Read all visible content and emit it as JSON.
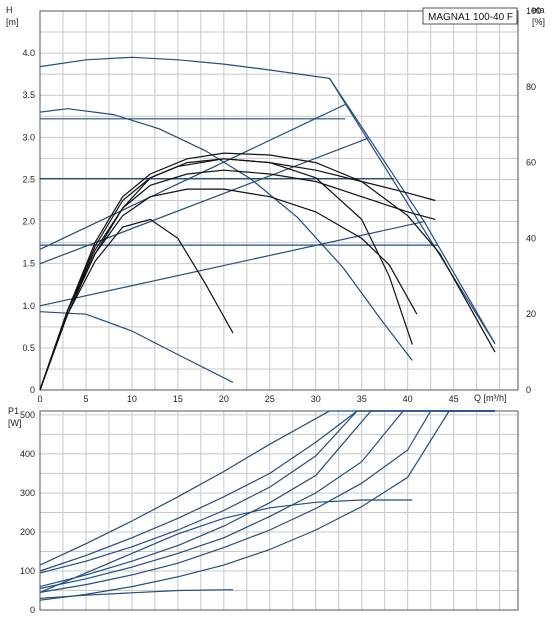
{
  "chart_data": [
    {
      "type": "line",
      "title": "MAGNA1 100-40 F",
      "xlabel": "Q [m³/h]",
      "ylabel": "H",
      "ylabel_unit": "[m]",
      "y2label": "eta",
      "y2label_unit": "[%]",
      "xlim": [
        0,
        52
      ],
      "ylim": [
        0,
        4.5
      ],
      "y2lim": [
        0,
        100
      ],
      "x_ticks": [
        "0",
        "5",
        "10",
        "15",
        "20",
        "25",
        "30",
        "35",
        "40",
        "45"
      ],
      "y_ticks": [
        "0",
        "0.5",
        "1.0",
        "1.5",
        "2.0",
        "2.5",
        "3.0",
        "3.5",
        "4.0"
      ],
      "y2_ticks": [
        "0",
        "20",
        "40",
        "60",
        "80",
        "100"
      ],
      "grid": true,
      "head_curves": [
        {
          "x": [
            0,
            5,
            10,
            15,
            20,
            25,
            31.5,
            41.8,
            49.5
          ],
          "y": [
            3.84,
            3.92,
            3.95,
            3.92,
            3.87,
            3.8,
            3.7,
            2.0,
            0.55
          ]
        },
        {
          "x": [
            0,
            3,
            8,
            13,
            18,
            23,
            28,
            33,
            37,
            40.5
          ],
          "y": [
            3.3,
            3.34,
            3.27,
            3.1,
            2.84,
            2.5,
            2.05,
            1.45,
            0.85,
            0.35
          ]
        },
        {
          "x": [
            0,
            5,
            10,
            15,
            21
          ],
          "y": [
            0.93,
            0.9,
            0.7,
            0.42,
            0.09
          ]
        },
        {
          "x": [
            0,
            33.2
          ],
          "y": [
            3.22,
            3.22
          ]
        },
        {
          "x": [
            0,
            38.5
          ],
          "y": [
            2.51,
            2.51
          ]
        },
        {
          "x": [
            0,
            43.3
          ],
          "y": [
            1.72,
            1.72
          ]
        },
        {
          "x": [
            0,
            33.2
          ],
          "y": [
            1.67,
            3.39
          ]
        },
        {
          "x": [
            0,
            35.7
          ],
          "y": [
            1.5,
            2.99
          ]
        },
        {
          "x": [
            0,
            41.8
          ],
          "y": [
            1.0,
            2.0
          ]
        },
        {
          "x": [
            31.5,
            49.5
          ],
          "y": [
            3.7,
            0.55
          ]
        }
      ],
      "efficiency_curves": [
        {
          "x": [
            0,
            3,
            6,
            9,
            12,
            15,
            18,
            21
          ],
          "y": [
            0,
            20,
            34,
            43,
            45,
            40,
            28,
            15
          ]
        },
        {
          "x": [
            0,
            3,
            6,
            9,
            12,
            15,
            20,
            25,
            30,
            35,
            38,
            40.5
          ],
          "y": [
            0,
            20,
            36,
            48,
            56,
            59,
            61,
            60,
            56,
            45,
            30,
            12
          ]
        },
        {
          "x": [
            0,
            3,
            6,
            9,
            12,
            16,
            20,
            25,
            30,
            35,
            40,
            43.5,
            49.5
          ],
          "y": [
            0,
            21,
            39,
            51,
            57,
            61,
            62.5,
            62,
            60,
            55,
            46,
            36,
            10
          ]
        },
        {
          "x": [
            0,
            3,
            6,
            9,
            12,
            16,
            20,
            25,
            30,
            35,
            40,
            43
          ],
          "y": [
            0,
            21,
            38,
            50,
            56,
            60,
            61,
            60,
            58,
            55,
            52,
            50
          ]
        },
        {
          "x": [
            0,
            3,
            6,
            9,
            12,
            16,
            20,
            25,
            30,
            35,
            40,
            43
          ],
          "y": [
            0,
            21,
            37,
            48,
            54,
            57,
            58,
            57,
            55,
            51,
            47,
            45
          ]
        },
        {
          "x": [
            0,
            3,
            6,
            9,
            12,
            16,
            20,
            25,
            30,
            35,
            38,
            41
          ],
          "y": [
            0,
            21,
            36,
            46,
            51,
            53,
            53,
            51,
            47,
            40,
            33,
            20
          ]
        }
      ]
    },
    {
      "type": "line",
      "xlabel": "",
      "ylabel": "P1",
      "ylabel_unit": "[W]",
      "xlim": [
        0,
        52
      ],
      "ylim": [
        0,
        510
      ],
      "y_ticks": [
        "0",
        "100",
        "200",
        "300",
        "400",
        "500"
      ],
      "grid": true,
      "power_curves": [
        {
          "x": [
            0,
            5,
            10,
            15,
            21
          ],
          "y": [
            30,
            38,
            44,
            50,
            52
          ]
        },
        {
          "x": [
            0,
            5,
            10,
            15,
            20,
            25,
            30,
            35,
            40.5
          ],
          "y": [
            45,
            95,
            145,
            195,
            235,
            262,
            276,
            282,
            282
          ]
        },
        {
          "x": [
            0,
            5,
            10,
            15,
            20,
            25,
            31.5,
            49.5
          ],
          "y": [
            115,
            170,
            228,
            290,
            355,
            425,
            510,
            510
          ]
        },
        {
          "x": [
            0,
            5,
            10,
            15,
            20,
            25,
            30,
            34.5,
            49.5
          ],
          "y": [
            100,
            140,
            185,
            235,
            290,
            350,
            430,
            510,
            510
          ]
        },
        {
          "x": [
            0,
            5,
            10,
            15,
            20,
            25,
            30,
            34.5,
            49.5
          ],
          "y": [
            95,
            125,
            162,
            205,
            255,
            315,
            395,
            510,
            510
          ]
        },
        {
          "x": [
            0,
            5,
            10,
            15,
            20,
            25,
            30,
            36,
            49.5
          ],
          "y": [
            60,
            90,
            125,
            165,
            215,
            275,
            345,
            510,
            510
          ]
        },
        {
          "x": [
            0,
            5,
            10,
            15,
            20,
            25,
            30,
            35,
            39.5,
            49.5
          ],
          "y": [
            55,
            80,
            110,
            145,
            185,
            240,
            300,
            380,
            510,
            510
          ]
        },
        {
          "x": [
            0,
            5,
            10,
            15,
            20,
            25,
            30,
            35,
            40,
            42.5,
            49.5
          ],
          "y": [
            45,
            65,
            90,
            120,
            160,
            205,
            260,
            325,
            410,
            510,
            510
          ]
        },
        {
          "x": [
            0,
            5,
            10,
            15,
            20,
            25,
            30,
            35,
            40,
            44.5,
            49.5
          ],
          "y": [
            25,
            40,
            60,
            85,
            115,
            155,
            205,
            265,
            340,
            510,
            510
          ]
        }
      ]
    }
  ]
}
